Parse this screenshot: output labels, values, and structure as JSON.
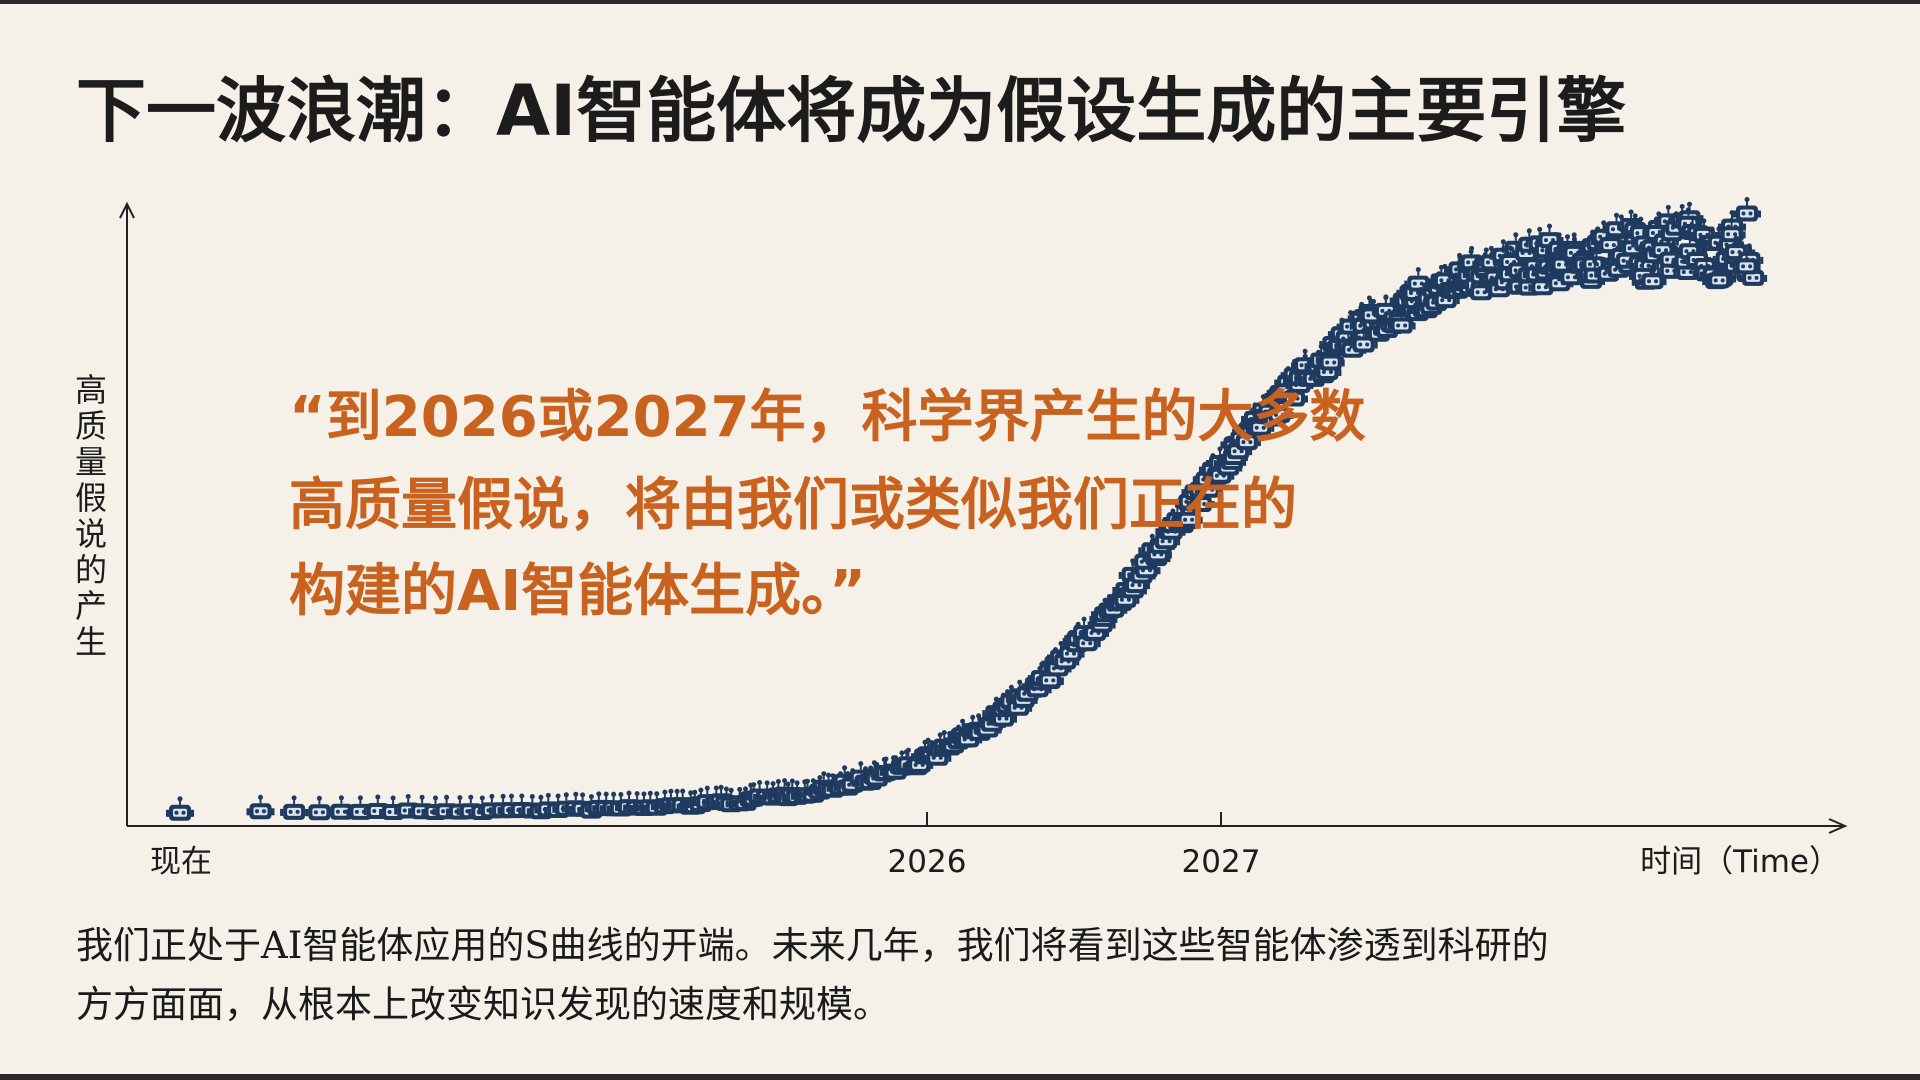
{
  "title": "下一波浪潮：AI智能体将成为假设生成的主要引擎",
  "y_axis_label": "高质量假说的产生",
  "x_axis_labels": [
    "现在",
    "2026",
    "2027",
    "时间（Time）"
  ],
  "quote": {
    "lines": [
      "“到2026或2027年，科学界产生的大多数",
      "高质量假说，将由我们或类似我们正在的",
      "构建的AI智能体生成。”"
    ]
  },
  "body": {
    "lines": [
      "我们正处于AI智能体应用的S曲线的开端。未来几年，我们将看到这些智能体渗透到科研的",
      "方方面面，从根本上改变知识发现的速度和规模。"
    ]
  }
}
